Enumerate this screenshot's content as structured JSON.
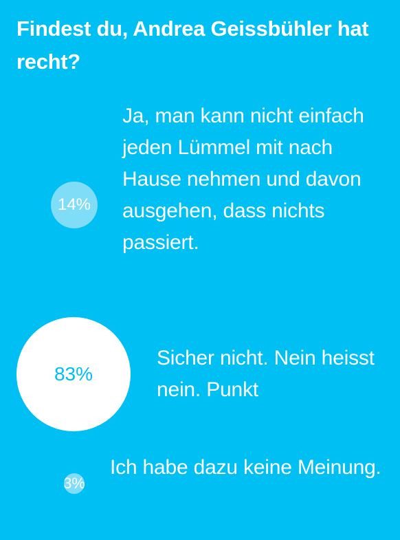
{
  "poll": {
    "question": "Findest du, Andrea Geissbühler hat recht?",
    "answers": [
      {
        "percent": "14%",
        "share": 0.14,
        "text": "Ja, man kann nicht einfach jeden Lümmel mit nach Hause nehmen und davon ausgehen, dass nichts passiert."
      },
      {
        "percent": "83%",
        "share": 0.83,
        "text": "Sicher nicht. Nein heisst nein. Punkt"
      },
      {
        "percent": "3%",
        "share": 0.03,
        "text": "Ich habe dazu keine Meinung."
      }
    ]
  },
  "colors": {
    "background": "#00BFF2",
    "bubble_primary": "#FFFFFF",
    "bubble_secondary": "#80DDF7",
    "text": "#FFFFFF"
  }
}
